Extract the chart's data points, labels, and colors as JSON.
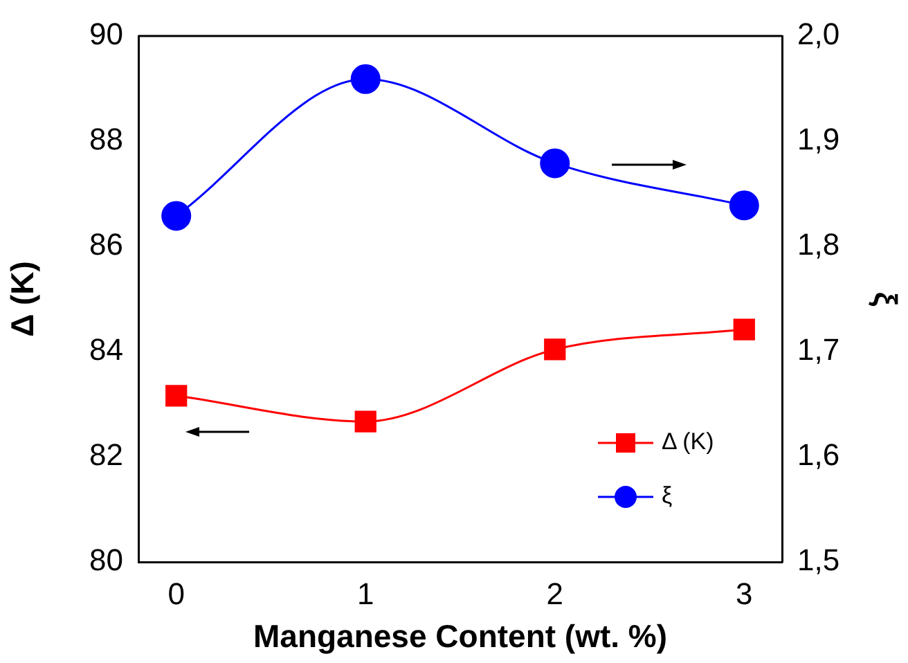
{
  "chart_data": {
    "type": "line",
    "xlabel": "Manganese Content (wt. %)",
    "ylabel": "Δ (K)",
    "y2label": "ξ",
    "x": [
      0,
      1,
      2,
      3
    ],
    "series": [
      {
        "name": "Δ (K)",
        "color": "#ff0000",
        "values": [
          83.16,
          82.67,
          84.04,
          84.42
        ],
        "marker": "square"
      },
      {
        "name": "ξ",
        "color": "#0000ff",
        "values": [
          1.829,
          1.959,
          1.879,
          1.839
        ],
        "axis": "y2",
        "marker": "circle"
      }
    ],
    "xlim": [
      -0.2,
      3.2
    ],
    "xticks": [
      0,
      1,
      2,
      3
    ],
    "ylim": [
      80,
      90
    ],
    "yticks": [
      80,
      82,
      84,
      86,
      88,
      90
    ],
    "y2lim": [
      1.5,
      2.0
    ],
    "y2ticks": [
      {
        "value": 1.5,
        "label": "1,5"
      },
      {
        "value": 1.6,
        "label": "1,6"
      },
      {
        "value": 1.7,
        "label": "1,7"
      },
      {
        "value": 1.8,
        "label": "1,8"
      },
      {
        "value": 1.9,
        "label": "1,9"
      },
      {
        "value": 2.0,
        "label": "2,0"
      }
    ],
    "grid": false,
    "legend": "bottom right",
    "line_style": "solid"
  }
}
